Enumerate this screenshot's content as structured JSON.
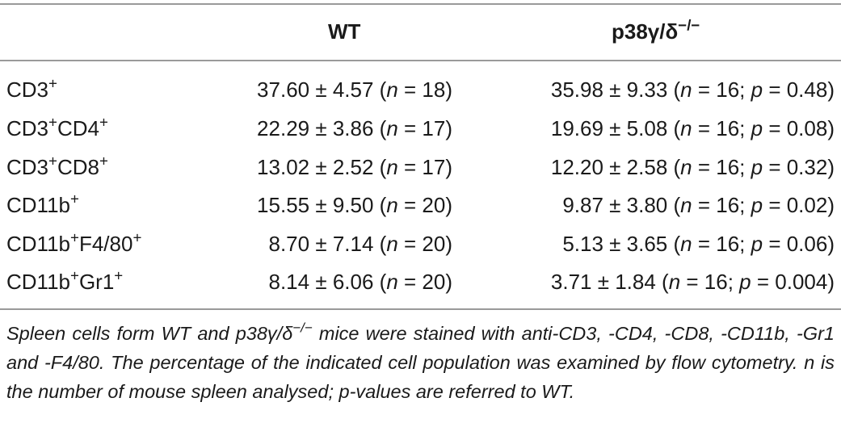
{
  "table": {
    "headers": [
      "",
      "WT",
      "p38γ/δ⁻/⁻"
    ],
    "rows": [
      {
        "population": "CD3⁺",
        "wt": "37.60 ± 4.57 (n = 18)",
        "ko": "35.98 ± 9.33 (n = 16; p = 0.48)"
      },
      {
        "population": "CD3⁺CD4⁺",
        "wt": "22.29 ± 3.86 (n = 17)",
        "ko": "19.69 ± 5.08 (n = 16; p = 0.08)"
      },
      {
        "population": "CD3⁺CD8⁺",
        "wt": "13.02 ± 2.52 (n = 17)",
        "ko": "12.20 ± 2.58 (n = 16; p = 0.32)"
      },
      {
        "population": "CD11b⁺",
        "wt": "15.55 ± 9.50 (n = 20)",
        "ko": "9.87 ± 3.80 (n = 16; p = 0.02)"
      },
      {
        "population": "CD11b⁺F4/80⁺",
        "wt": "8.70 ± 7.14 (n = 20)",
        "ko": "5.13 ± 3.65 (n = 16; p = 0.06)"
      },
      {
        "population": "CD11b⁺Gr1⁺",
        "wt": "8.14 ± 6.06 (n = 20)",
        "ko": "3.71 ± 1.84 (n = 16; p = 0.004)"
      }
    ]
  },
  "footnote": "Spleen cells form WT and p38γ/δ⁻/⁻ mice were stained with anti-CD3, -CD4, -CD8, -CD11b, -Gr1 and -F4/80. The percentage of the indicated cell population was examined by flow cytometry. n is the number of mouse spleen analysed; p-values are referred to WT."
}
